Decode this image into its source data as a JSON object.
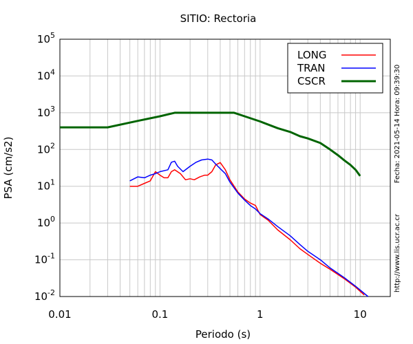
{
  "chart_data": {
    "type": "line",
    "title": "SITIO: Rectoria",
    "xlabel": "Periodo (s)",
    "ylabel": "PSA (cm/s2)",
    "xscale": "log",
    "yscale": "log",
    "xlim": [
      0.01,
      20
    ],
    "ylim": [
      0.01,
      100000
    ],
    "grid": true,
    "legend_position": "top-right",
    "x_tick_labels": [
      "0.01",
      "0.1",
      "1",
      "10"
    ],
    "y_tick_labels": [
      {
        "base": "10",
        "exp": "-2"
      },
      {
        "base": "10",
        "exp": "-1"
      },
      {
        "base": "10",
        "exp": "0"
      },
      {
        "base": "10",
        "exp": "1"
      },
      {
        "base": "10",
        "exp": "2"
      },
      {
        "base": "10",
        "exp": "3"
      },
      {
        "base": "10",
        "exp": "4"
      },
      {
        "base": "10",
        "exp": "5"
      }
    ],
    "side_texts": {
      "timestamp": "Fecha: 2021-05-14 Hora: 09:39:30",
      "url": "http://www.lis.ucr.ac.cr"
    },
    "series": [
      {
        "name": "LONG",
        "color": "#ff0000",
        "points": [
          [
            0.05,
            10
          ],
          [
            0.06,
            10
          ],
          [
            0.07,
            12
          ],
          [
            0.08,
            14
          ],
          [
            0.09,
            25
          ],
          [
            0.1,
            20
          ],
          [
            0.11,
            17
          ],
          [
            0.12,
            17
          ],
          [
            0.13,
            25
          ],
          [
            0.14,
            28
          ],
          [
            0.16,
            22
          ],
          [
            0.18,
            15
          ],
          [
            0.2,
            16
          ],
          [
            0.22,
            15
          ],
          [
            0.25,
            18
          ],
          [
            0.28,
            20
          ],
          [
            0.3,
            20
          ],
          [
            0.33,
            25
          ],
          [
            0.36,
            38
          ],
          [
            0.4,
            44
          ],
          [
            0.45,
            28
          ],
          [
            0.5,
            15
          ],
          [
            0.6,
            7
          ],
          [
            0.7,
            4.5
          ],
          [
            0.8,
            3.5
          ],
          [
            0.9,
            3
          ],
          [
            1,
            1.7
          ],
          [
            1.2,
            1.2
          ],
          [
            1.5,
            0.65
          ],
          [
            2,
            0.35
          ],
          [
            2.5,
            0.2
          ],
          [
            3,
            0.14
          ],
          [
            4,
            0.08
          ],
          [
            5,
            0.055
          ],
          [
            7,
            0.03
          ],
          [
            9,
            0.018
          ],
          [
            11,
            0.011
          ]
        ]
      },
      {
        "name": "TRAN",
        "color": "#0000ff",
        "points": [
          [
            0.05,
            14
          ],
          [
            0.06,
            18
          ],
          [
            0.07,
            17
          ],
          [
            0.08,
            20
          ],
          [
            0.09,
            22
          ],
          [
            0.1,
            25
          ],
          [
            0.12,
            28
          ],
          [
            0.13,
            45
          ],
          [
            0.14,
            48
          ],
          [
            0.15,
            35
          ],
          [
            0.17,
            25
          ],
          [
            0.2,
            35
          ],
          [
            0.23,
            45
          ],
          [
            0.26,
            52
          ],
          [
            0.3,
            55
          ],
          [
            0.33,
            52
          ],
          [
            0.36,
            40
          ],
          [
            0.4,
            30
          ],
          [
            0.45,
            22
          ],
          [
            0.5,
            13
          ],
          [
            0.6,
            6.5
          ],
          [
            0.7,
            4.2
          ],
          [
            0.8,
            3
          ],
          [
            0.9,
            2.4
          ],
          [
            1,
            1.8
          ],
          [
            1.2,
            1.3
          ],
          [
            1.5,
            0.8
          ],
          [
            2,
            0.45
          ],
          [
            2.5,
            0.26
          ],
          [
            3,
            0.17
          ],
          [
            4,
            0.1
          ],
          [
            5,
            0.06
          ],
          [
            7,
            0.032
          ],
          [
            9,
            0.019
          ],
          [
            12,
            0.01
          ]
        ]
      },
      {
        "name": "CSCR",
        "color": "#006400",
        "points": [
          [
            0.01,
            400
          ],
          [
            0.03,
            400
          ],
          [
            0.06,
            600
          ],
          [
            0.1,
            800
          ],
          [
            0.14,
            1000
          ],
          [
            0.2,
            1000
          ],
          [
            0.3,
            1000
          ],
          [
            0.55,
            1000
          ],
          [
            0.7,
            800
          ],
          [
            1,
            580
          ],
          [
            1.5,
            380
          ],
          [
            2,
            300
          ],
          [
            2.5,
            230
          ],
          [
            3,
            200
          ],
          [
            4,
            150
          ],
          [
            5,
            100
          ],
          [
            6,
            70
          ],
          [
            7,
            50
          ],
          [
            8,
            38
          ],
          [
            9,
            28
          ],
          [
            10,
            19
          ]
        ]
      }
    ]
  }
}
